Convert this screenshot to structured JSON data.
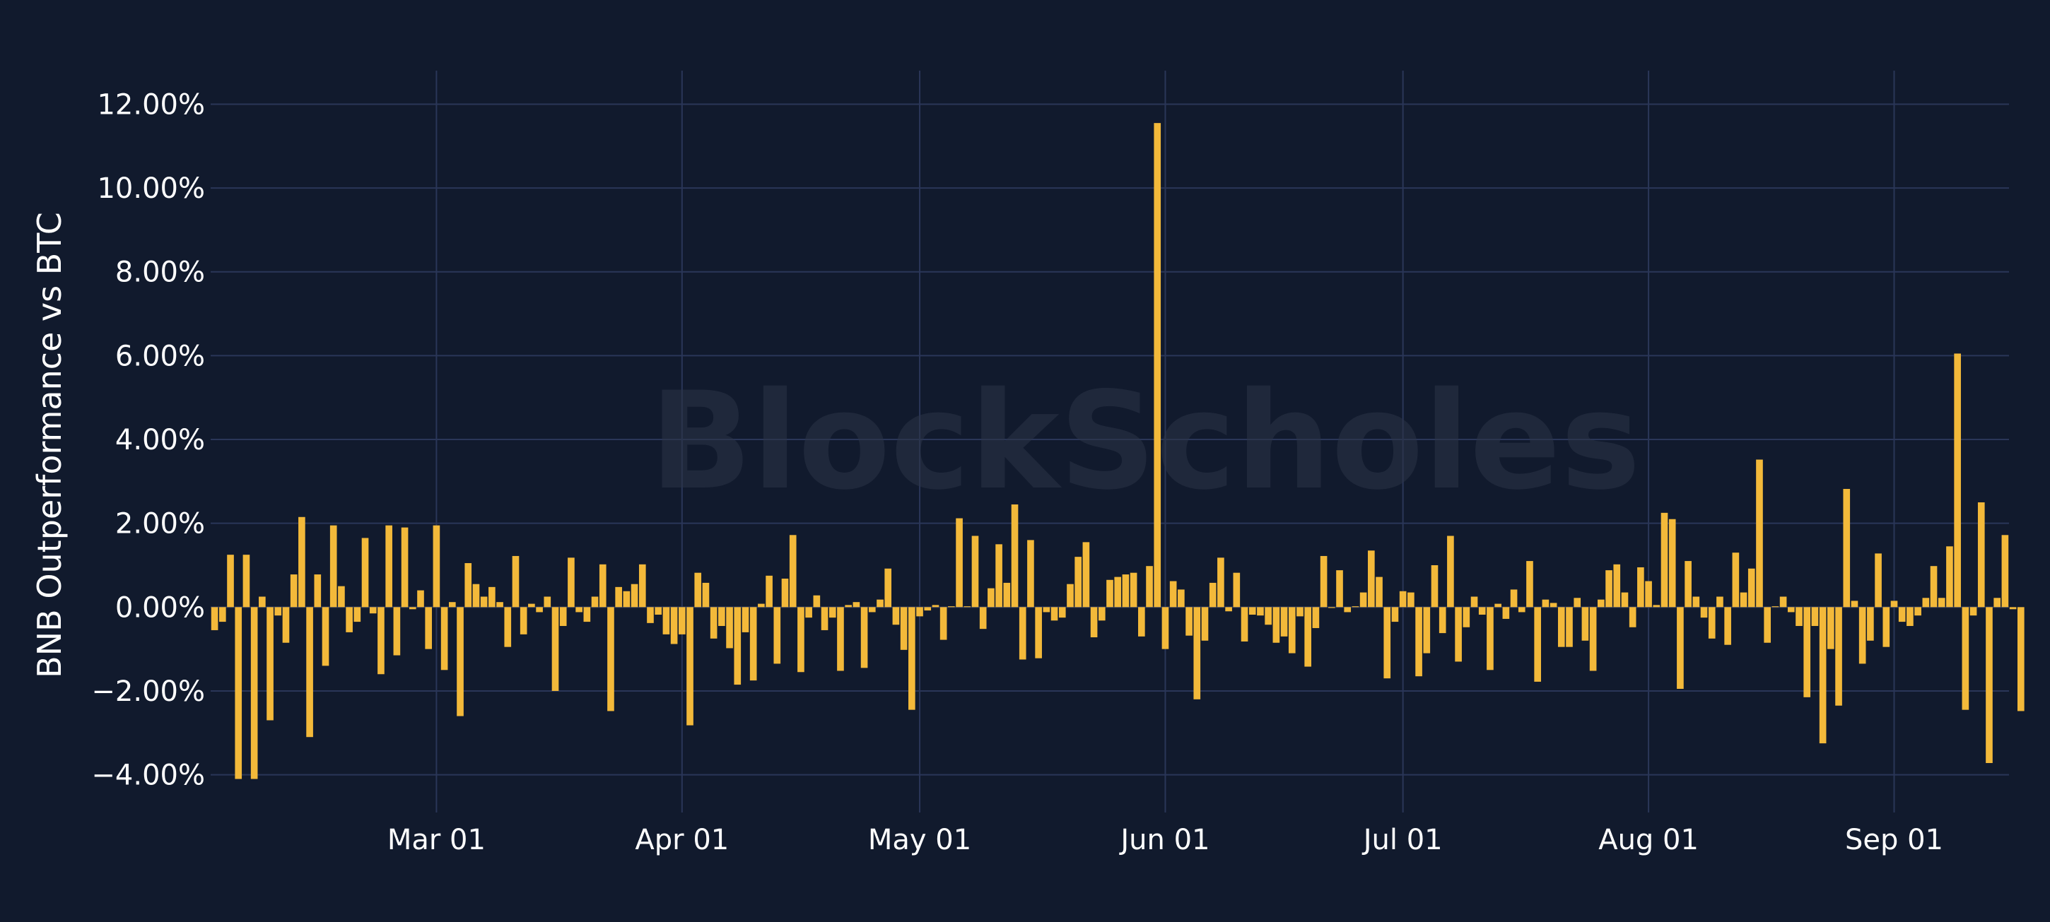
{
  "chart_data": {
    "type": "bar",
    "ylabel": "BNB Outperformance vs BTC",
    "ylim": [
      -4.9,
      12.8
    ],
    "y_ticks": [
      -4,
      -2,
      0,
      2,
      4,
      6,
      8,
      10,
      12
    ],
    "y_tick_labels": [
      "−4.00%",
      "−2.00%",
      "0.00%",
      "2.00%",
      "4.00%",
      "6.00%",
      "8.00%",
      "10.00%",
      "12.00%"
    ],
    "x_start": "2023-02-01",
    "x_ticks": [
      {
        "date": "2023-03-01",
        "label": "Mar 01"
      },
      {
        "date": "2023-04-01",
        "label": "Apr 01"
      },
      {
        "date": "2023-05-01",
        "label": "May 01"
      },
      {
        "date": "2023-06-01",
        "label": "Jun 01"
      },
      {
        "date": "2023-07-01",
        "label": "Jul 01"
      },
      {
        "date": "2023-08-01",
        "label": "Aug 01"
      },
      {
        "date": "2023-09-01",
        "label": "Sep 01"
      }
    ],
    "x_end": "2023-09-15",
    "grid": true,
    "bar_color": "#f3b93a",
    "background_color": "#111a2d",
    "watermark": "BlockScholes",
    "values": [
      -0.55,
      -0.35,
      1.25,
      -4.1,
      1.25,
      -4.1,
      0.25,
      -2.7,
      -0.2,
      -0.85,
      0.78,
      2.15,
      -3.1,
      0.78,
      -1.4,
      1.95,
      0.5,
      -0.6,
      -0.35,
      1.65,
      -0.15,
      -1.6,
      1.95,
      -1.15,
      1.9,
      -0.05,
      0.4,
      -1.0,
      1.95,
      -1.5,
      0.12,
      -2.6,
      1.05,
      0.55,
      0.25,
      0.48,
      0.12,
      -0.95,
      1.22,
      -0.65,
      0.08,
      -0.12,
      0.25,
      -2.0,
      -0.45,
      1.18,
      -0.12,
      -0.35,
      0.25,
      1.02,
      -2.48,
      0.48,
      0.38,
      0.55,
      1.02,
      -0.38,
      -0.18,
      -0.65,
      -0.88,
      -0.65,
      -2.82,
      0.82,
      0.58,
      -0.75,
      -0.45,
      -0.98,
      -1.85,
      -0.6,
      -1.75,
      0.08,
      0.75,
      -1.35,
      0.68,
      1.72,
      -1.55,
      -0.25,
      0.28,
      -0.55,
      -0.25,
      -1.52,
      0.05,
      0.12,
      -1.45,
      -0.12,
      0.18,
      0.92,
      -0.42,
      -1.02,
      -2.45,
      -0.22,
      -0.08,
      0.05,
      -0.78,
      0.02,
      2.12,
      0.02,
      1.7,
      -0.52,
      0.45,
      1.5,
      0.58,
      2.45,
      -1.25,
      1.6,
      -1.22,
      -0.12,
      -0.32,
      -0.25,
      0.55,
      1.2,
      1.55,
      -0.72,
      -0.32,
      0.65,
      0.72,
      0.78,
      0.82,
      -0.7,
      0.98,
      11.55,
      -1.0,
      0.62,
      0.42,
      -0.68,
      -2.2,
      -0.8,
      0.58,
      1.18,
      -0.1,
      0.82,
      -0.82,
      -0.18,
      -0.2,
      -0.42,
      -0.85,
      -0.7,
      -1.1,
      -0.22,
      -1.42,
      -0.5,
      1.22,
      -0.02,
      0.88,
      -0.12,
      0.02,
      0.35,
      1.35,
      0.72,
      -1.7,
      -0.35,
      0.38,
      0.35,
      -1.65,
      -1.1,
      1.0,
      -0.62,
      1.7,
      -1.3,
      -0.48,
      0.25,
      -0.18,
      -1.5,
      0.08,
      -0.28,
      0.42,
      -0.12,
      1.1,
      -1.78,
      0.18,
      0.1,
      -0.95,
      -0.95,
      0.22,
      -0.8,
      -1.52,
      0.18,
      0.88,
      1.02,
      0.35,
      -0.48,
      0.95,
      0.62,
      0.05,
      2.25,
      2.1,
      -1.95,
      1.1,
      0.25,
      -0.25,
      -0.75,
      0.25,
      -0.9,
      1.3,
      0.35,
      0.92,
      3.52,
      -0.85,
      0.02,
      0.25,
      -0.12,
      -0.45,
      -2.15,
      -0.45,
      -3.25,
      -1.0,
      -2.35,
      2.82,
      0.15,
      -1.35,
      -0.8,
      1.28,
      -0.95,
      0.15,
      -0.35,
      -0.45,
      -0.2,
      0.22,
      0.98,
      0.22,
      1.45,
      6.05,
      -2.45,
      -0.2,
      2.5,
      -3.72,
      0.22,
      1.72,
      -0.05,
      -2.48
    ]
  }
}
